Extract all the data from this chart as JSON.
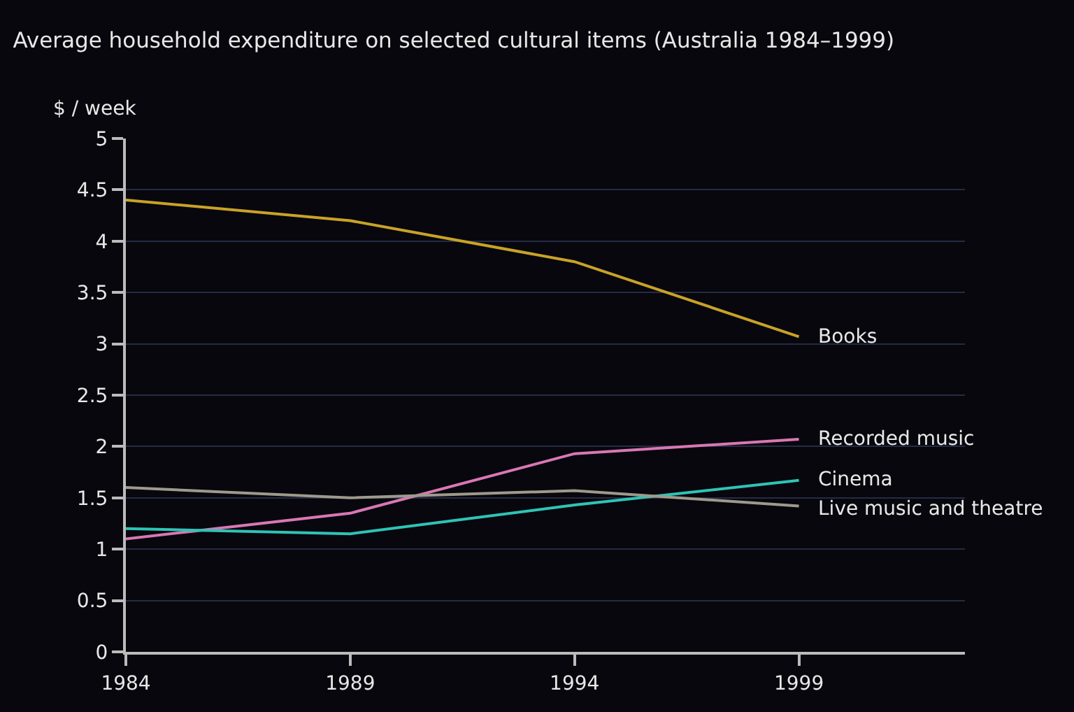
{
  "chart_data": {
    "type": "line",
    "title": "Average household expenditure on selected cultural items (Australia 1984–1999)",
    "ylabel": "$ / week",
    "x": [
      1984,
      1989,
      1994,
      1999
    ],
    "series": [
      {
        "name": "Books",
        "color": "#c9a227",
        "values": [
          4.4,
          4.2,
          3.8,
          3.07
        ]
      },
      {
        "name": "Recorded music",
        "color": "#d977b4",
        "values": [
          1.1,
          1.35,
          1.93,
          2.07
        ]
      },
      {
        "name": "Cinema",
        "color": "#2ec4b6",
        "values": [
          1.2,
          1.15,
          1.43,
          1.67
        ]
      },
      {
        "name": "Live music and theatre",
        "color": "#9e9a8c",
        "values": [
          1.6,
          1.5,
          1.57,
          1.42
        ]
      }
    ],
    "xlim": [
      1984,
      2002.7
    ],
    "xticks": [
      1984,
      1989,
      1994,
      1999
    ],
    "ylim": [
      0,
      5
    ],
    "yticks": [
      0,
      0.5,
      1,
      1.5,
      2,
      2.5,
      3,
      3.5,
      4,
      4.5,
      5
    ],
    "grid": "y",
    "legend": false,
    "marker": "none",
    "line_style": "solid"
  }
}
